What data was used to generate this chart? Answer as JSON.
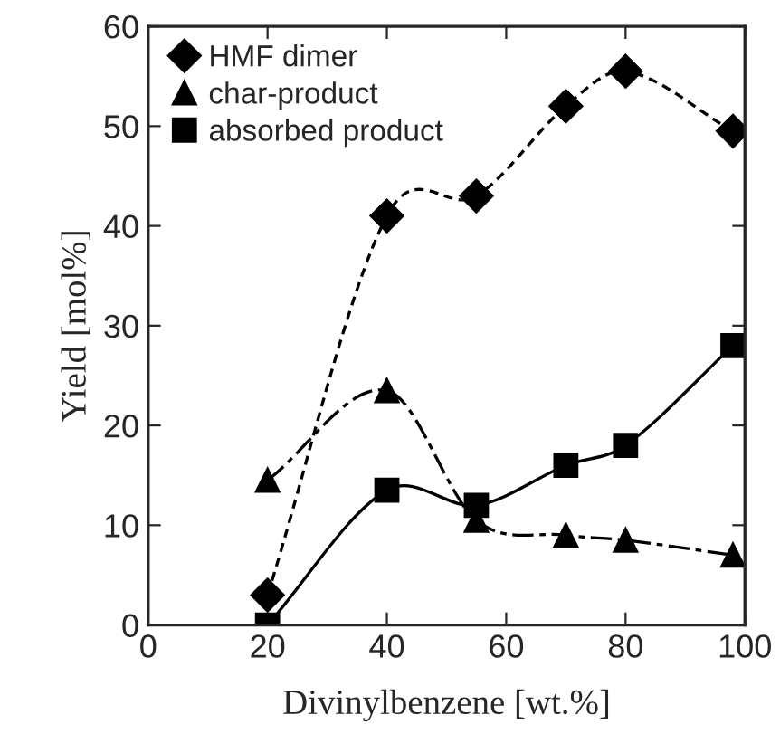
{
  "chart_data": {
    "type": "line",
    "xlabel": "Divinylbenzene [wt.%]",
    "ylabel": "Yield [mol%]",
    "x": [
      20,
      40,
      55,
      70,
      80,
      98
    ],
    "series": [
      {
        "name": "HMF dimer",
        "color": "#000000",
        "marker": "diamond",
        "line_style": "dotted",
        "values": [
          3,
          41,
          43,
          52,
          55.5,
          49.5
        ]
      },
      {
        "name": "char-product",
        "color": "#000000",
        "marker": "triangle",
        "line_style": "dashed",
        "values": [
          14.5,
          23.5,
          10.5,
          9,
          8.5,
          7
        ]
      },
      {
        "name": "absorbed product",
        "color": "#000000",
        "marker": "square",
        "line_style": "solid",
        "values": [
          0,
          13.5,
          12,
          16,
          18,
          28
        ]
      }
    ],
    "xlim": [
      0,
      100
    ],
    "xticks": [
      0,
      20,
      40,
      60,
      80,
      100
    ],
    "ylim": [
      0,
      60
    ],
    "yticks": [
      0,
      10,
      20,
      30,
      40,
      50,
      60
    ],
    "legend": "top left",
    "grid": false
  }
}
